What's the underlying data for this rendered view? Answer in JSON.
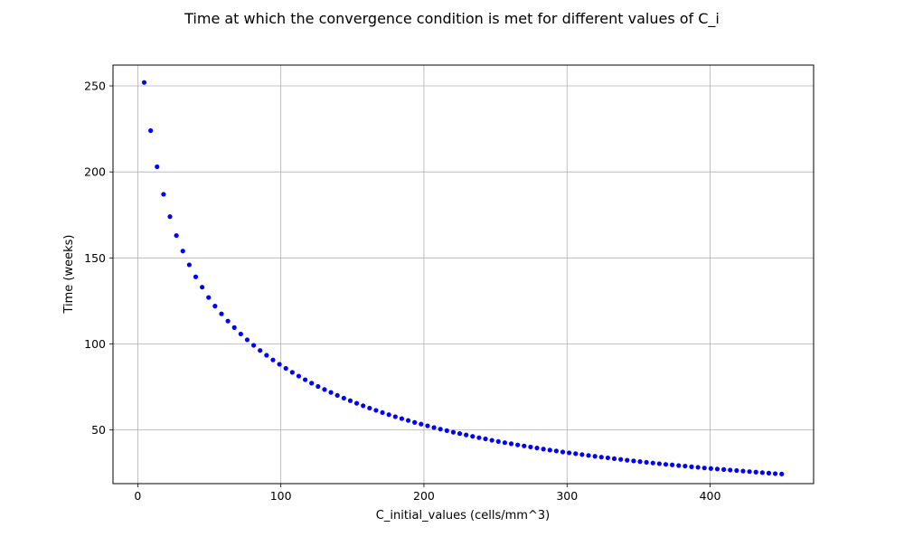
{
  "chart_data": {
    "type": "scatter",
    "title": "Time at which the convergence condition is met for different values of C_i",
    "xlabel": "C_initial_values (cells/mm^3)",
    "ylabel": "Time (weeks)",
    "xlim": [
      -17.3,
      472.3
    ],
    "ylim": [
      18.8,
      262.1
    ],
    "xticks": [
      0,
      100,
      200,
      300,
      400
    ],
    "yticks": [
      50,
      100,
      150,
      200,
      250
    ],
    "xtick_labels": [
      "0",
      "100",
      "200",
      "300",
      "400"
    ],
    "ytick_labels": [
      "50",
      "100",
      "150",
      "200",
      "250"
    ],
    "grid": true,
    "marker_color": "#0000ff",
    "grid_color": "#b0b0b0",
    "series": [
      {
        "x": [
          4.5,
          9.0,
          13.5,
          18.0,
          22.5,
          27.0,
          31.5,
          36.0,
          40.5,
          45.0,
          49.5,
          54.0,
          58.5,
          63.0,
          67.5,
          72.0,
          76.5,
          81.0,
          85.5,
          90.0,
          94.5,
          99.0,
          103.5,
          108.0,
          112.5,
          117.0,
          121.5,
          126.0,
          130.5,
          135.0,
          139.5,
          144.0,
          148.5,
          153.0,
          157.5,
          162.0,
          166.5,
          171.0,
          175.5,
          180.0,
          184.5,
          189.0,
          193.5,
          198.0,
          202.5,
          207.0,
          211.5,
          216.0,
          220.5,
          225.0,
          229.5,
          234.0,
          238.5,
          243.0,
          247.5,
          252.0,
          256.5,
          261.0,
          265.5,
          270.0,
          274.5,
          279.0,
          283.5,
          288.0,
          292.5,
          297.0,
          301.5,
          306.0,
          310.5,
          315.0,
          319.5,
          324.0,
          328.5,
          333.0,
          337.5,
          342.0,
          346.5,
          351.0,
          355.5,
          360.0,
          364.5,
          369.0,
          373.5,
          378.0,
          382.5,
          387.0,
          391.5,
          396.0,
          400.5,
          405.0,
          409.5,
          414.0,
          418.5,
          423.0,
          427.5,
          432.0,
          436.5,
          441.0,
          445.5,
          450.0
        ],
        "y": [
          252,
          224,
          203,
          187,
          174,
          163,
          154,
          146,
          139,
          133,
          127,
          122,
          117.5,
          113.3,
          109.5,
          105.8,
          102.4,
          99.2,
          96.2,
          93.4,
          90.7,
          88.2,
          85.8,
          83.5,
          81.3,
          79.2,
          77.2,
          75.3,
          73.5,
          71.8,
          70.1,
          68.5,
          67.0,
          65.5,
          64.1,
          62.7,
          61.4,
          60.1,
          58.9,
          57.7,
          56.6,
          55.5,
          54.4,
          53.4,
          52.4,
          51.4,
          50.5,
          49.6,
          48.7,
          47.9,
          47.1,
          46.3,
          45.5,
          44.8,
          44.0,
          43.3,
          42.6,
          42.0,
          41.3,
          40.7,
          40.1,
          39.5,
          38.9,
          38.3,
          37.8,
          37.2,
          36.7,
          36.2,
          35.7,
          35.2,
          34.7,
          34.2,
          33.8,
          33.3,
          32.9,
          32.4,
          32.0,
          31.6,
          31.2,
          30.8,
          30.4,
          30.0,
          29.7,
          29.3,
          29.0,
          28.6,
          28.3,
          27.9,
          27.6,
          27.3,
          27.0,
          26.7,
          26.4,
          26.1,
          25.8,
          25.5,
          25.2,
          24.9,
          24.6,
          24.4
        ]
      }
    ]
  }
}
